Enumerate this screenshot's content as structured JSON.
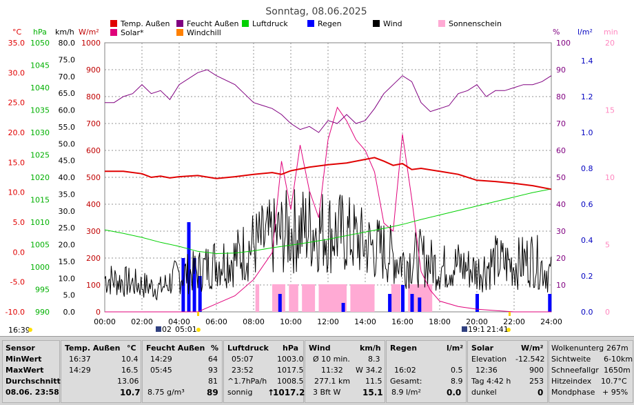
{
  "title": "Sonntag, 08.06.2025",
  "legend": [
    {
      "label": "Temp. Außen",
      "color": "#e00000"
    },
    {
      "label": "Feucht Außen",
      "color": "#800080"
    },
    {
      "label": "Luftdruck",
      "color": "#00d000"
    },
    {
      "label": "Regen",
      "color": "#0000ff"
    },
    {
      "label": "Wind",
      "color": "#000000"
    },
    {
      "label": "Sonnenschein",
      "color": "#ffaad4"
    },
    {
      "label": "Solar*",
      "color": "#e0007a"
    },
    {
      "label": "Windchill",
      "color": "#ff8000"
    }
  ],
  "axes_units": {
    "temp": "°C",
    "pressure": "hPa",
    "wind": "km/h",
    "solar": "W/m²",
    "humidity": "%",
    "rain": "l/m²",
    "sun": "min"
  },
  "axes_ticks": {
    "temp": [
      "35.0",
      "30.0",
      "25.0",
      "20.0",
      "15.0",
      "10.0",
      "5.0",
      "0.0",
      "-5.0",
      "-10.0"
    ],
    "pressure": [
      "1050",
      "1045",
      "1040",
      "1035",
      "1030",
      "1025",
      "1020",
      "1015",
      "1010",
      "1005",
      "1000",
      "995",
      "990"
    ],
    "wind": [
      "80.0",
      "75.0",
      "70.0",
      "65.0",
      "60.0",
      "55.0",
      "50.0",
      "45.0",
      "40.0",
      "35.0",
      "30.0",
      "25.0",
      "20.0",
      "15.0",
      "10.0",
      "5.0",
      "0.0"
    ],
    "solar": [
      "1000",
      "900",
      "800",
      "700",
      "600",
      "500",
      "400",
      "300",
      "200",
      "100",
      "0"
    ],
    "humidity": [
      "100",
      "90",
      "80",
      "70",
      "60",
      "50",
      "40",
      "30",
      "20",
      "10"
    ],
    "rain": [
      "1.4",
      "1.2",
      "1.0",
      "0.8",
      "0.6",
      "0.4",
      "0.2",
      "0.0"
    ],
    "sun": [
      "20",
      "15",
      "10",
      "5",
      "0"
    ],
    "x": [
      "00:00",
      "02:00",
      "04:00",
      "06:00",
      "08:00",
      "10:00",
      "12:00",
      "14:00",
      "16:00",
      "18:00",
      "20:00",
      "22:00",
      "24:00"
    ]
  },
  "markers": {
    "moonset": "16:39",
    "sunrise_label": "02",
    "sunrise_time": "05:01",
    "sunset_label": "19:1",
    "sunset_time": "21:41"
  },
  "chart_data": {
    "type": "line",
    "title": "Sonntag, 08.06.2025",
    "x_range": [
      0,
      24
    ],
    "series": [
      {
        "name": "Temp. Außen",
        "unit": "°C",
        "x": [
          0,
          1,
          2,
          2.5,
          3,
          3.5,
          4,
          5,
          6,
          7,
          8,
          9,
          9.5,
          10,
          11,
          12,
          13,
          14,
          14.5,
          15,
          15.5,
          16,
          16.5,
          17,
          18,
          19,
          20,
          21,
          22,
          23,
          24
        ],
        "y": [
          13.5,
          13.5,
          13.1,
          12.5,
          12.7,
          12.4,
          12.6,
          12.8,
          12.3,
          12.6,
          13.0,
          13.3,
          13.0,
          13.6,
          14.2,
          14.6,
          14.9,
          15.5,
          15.8,
          15.2,
          14.5,
          14.8,
          13.8,
          14.0,
          13.5,
          13.0,
          12.0,
          11.8,
          11.5,
          11.1,
          10.5
        ]
      },
      {
        "name": "Feucht Außen",
        "unit": "%",
        "x": [
          0,
          0.5,
          1,
          1.5,
          2,
          2.5,
          3,
          3.5,
          4,
          5,
          5.5,
          6,
          7,
          7.5,
          8,
          8.5,
          9,
          9.5,
          10,
          10.5,
          11,
          11.5,
          12,
          12.5,
          13,
          13.5,
          14,
          14.5,
          15,
          15.5,
          16,
          16.5,
          17,
          17.5,
          18,
          18.5,
          19,
          19.5,
          20,
          20.5,
          21,
          21.5,
          22,
          22.5,
          23,
          23.5,
          24
        ],
        "y": [
          80,
          80,
          82,
          83,
          86,
          83,
          84,
          81,
          86,
          90,
          91,
          89,
          86,
          83,
          80,
          79,
          78,
          76,
          73,
          71,
          72,
          70,
          74,
          73,
          76,
          73,
          74,
          78,
          83,
          86,
          89,
          87,
          80,
          77,
          78,
          79,
          83,
          84,
          86,
          82,
          84,
          84,
          85,
          86,
          86,
          87,
          89
        ]
      },
      {
        "name": "Luftdruck",
        "unit": "hPa",
        "x": [
          0,
          1,
          2,
          3,
          4,
          5,
          6,
          7,
          8,
          9,
          10,
          11,
          12,
          13,
          14,
          15,
          16,
          17,
          18,
          19,
          20,
          21,
          22,
          23,
          24
        ],
        "y": [
          1008.3,
          1007.5,
          1006.6,
          1005.5,
          1004.6,
          1003.5,
          1003.0,
          1003.1,
          1003.6,
          1004.3,
          1004.9,
          1005.5,
          1006.2,
          1007.0,
          1007.8,
          1008.6,
          1009.5,
          1010.6,
          1011.6,
          1012.6,
          1013.6,
          1014.6,
          1015.6,
          1016.6,
          1017.4
        ]
      },
      {
        "name": "Solar*",
        "unit": "W/m²",
        "x": [
          0,
          4,
          5,
          6,
          7,
          8,
          9,
          9.5,
          10,
          10.5,
          11,
          11.5,
          12,
          12.5,
          13,
          13.5,
          14,
          14.5,
          15,
          15.5,
          16,
          16.5,
          17,
          17.5,
          18,
          19,
          20,
          21,
          22,
          22.5,
          24
        ],
        "y": [
          0,
          0,
          0,
          30,
          60,
          120,
          220,
          560,
          380,
          620,
          450,
          350,
          640,
          760,
          710,
          640,
          600,
          520,
          330,
          300,
          660,
          420,
          150,
          80,
          40,
          20,
          10,
          5,
          0,
          0,
          0
        ]
      },
      {
        "name": "Wind",
        "unit": "km/h",
        "x": [
          0,
          1,
          2,
          3,
          4,
          5,
          6,
          7,
          8,
          9,
          10,
          11,
          12,
          13,
          14,
          15,
          16,
          17,
          18,
          19,
          20,
          21,
          22,
          23,
          24
        ],
        "y": [
          10,
          9,
          8,
          7,
          11,
          12,
          15,
          16,
          20,
          22,
          24,
          25,
          24,
          23,
          20,
          18,
          15,
          16,
          13,
          14,
          12,
          15,
          14,
          16,
          11
        ]
      }
    ],
    "rain_events": [
      {
        "x": 4.2,
        "v": 0.3
      },
      {
        "x": 4.5,
        "v": 0.5
      },
      {
        "x": 4.8,
        "v": 0.3
      },
      {
        "x": 5.1,
        "v": 0.2
      },
      {
        "x": 9.4,
        "v": 0.1
      },
      {
        "x": 12.8,
        "v": 0.05
      },
      {
        "x": 15.3,
        "v": 0.1
      },
      {
        "x": 16.0,
        "v": 0.15
      },
      {
        "x": 16.5,
        "v": 0.1
      },
      {
        "x": 16.9,
        "v": 0.08
      },
      {
        "x": 20.0,
        "v": 0.1
      },
      {
        "x": 23.9,
        "v": 0.1
      }
    ],
    "sunshine_ranges": [
      [
        8.1,
        8.3
      ],
      [
        9.0,
        9.7
      ],
      [
        9.9,
        10.4
      ],
      [
        10.6,
        11.3
      ],
      [
        11.5,
        13.0
      ],
      [
        13.2,
        14.5
      ],
      [
        15.4,
        15.9
      ],
      [
        16.3,
        17.6
      ]
    ]
  },
  "stats": {
    "date": "08.06. 23:58",
    "sensor_header": "Sensor",
    "row_min": "MinWert",
    "row_max": "MaxWert",
    "row_avg": "Durchschnitt",
    "temp": {
      "head": "Temp. Außen",
      "unit": "°C",
      "min_time": "16:37",
      "min": "10.4",
      "max_time": "14:29",
      "max": "16.5",
      "avg": "13.06",
      "cur": "10.7"
    },
    "hum": {
      "head": "Feucht Außen",
      "unit": "%",
      "min_time": "14:29",
      "min": "64",
      "max_time": "05:45",
      "max": "93",
      "avg": "81",
      "abs": "8.75 g/m³",
      "cur": "89"
    },
    "press": {
      "head": "Luftdruck",
      "unit": "hPa",
      "min_time": "05:07",
      "min": "1003.0",
      "max_time": "23:52",
      "max": "1017.5",
      "trend": "^1.7hPa/h",
      "avg": "1008.5",
      "forecast": "sonnig",
      "cur": "1017.2"
    },
    "wind": {
      "head": "Wind",
      "unit": "km/h",
      "r1a": "Ø 10 min.",
      "r1b": "8.3",
      "r2a": "11:32",
      "r2b": "W 34.2",
      "r3a": "277.1 km",
      "r3b": "11.5",
      "r4a": "3 Bft W",
      "cur": "15.1"
    },
    "rain": {
      "head": "Regen",
      "unit": "l/m²",
      "r2a": "16:02",
      "r2b": "0.5",
      "r3a": "Gesamt:",
      "r3b": "8.9",
      "r4a": "8.9 l/m²",
      "cur": "0.0"
    },
    "solar": {
      "head": "Solar",
      "unit": "W/m²",
      "r1a": "Elevation",
      "r1b": "-12.542",
      "r2a": "12:36",
      "r2b": "900",
      "r3a": "Tag 4:42 h",
      "r3b": "253",
      "r4a": "dunkel",
      "cur": "0"
    },
    "misc": {
      "a1": "Wolkenunterg",
      "b1": "267m",
      "a2": "Sichtweite",
      "b2": "6-10km",
      "a3": "Schneefallgr",
      "b3": "1650m",
      "a4": "Hitzeindex",
      "b4": "10.7°C",
      "a5": "Mondphase",
      "b5": "+ 95%"
    }
  }
}
